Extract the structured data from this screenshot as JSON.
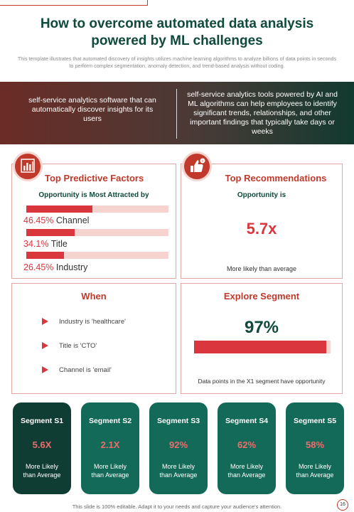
{
  "header": {
    "title_line1": "How to overcome automated data analysis",
    "title_line2": "powered by ML challenges",
    "subtitle": "This template illustrates that automated discovery of insights utilizes machine learning algorithms to analyze billions of data points in seconds to perform complex segmentation, anomaly detection, and trend-based analysis without coding."
  },
  "band": {
    "left": "self-service analytics software that can automatically discover insights for its users",
    "right": "self-service analytics tools powered by AI and ML algorithms can help employees to identify significant trends, relationships, and other important findings that typically take days or weeks"
  },
  "predictive": {
    "title": "Top Predictive Factors",
    "subtitle": "Opportunity is Most Attracted by",
    "icon": "bar-chart-icon",
    "factors": [
      {
        "pct": "46.45%",
        "label": "Channel",
        "value": 0.4645
      },
      {
        "pct": "34.1%",
        "label": "Title",
        "value": 0.341
      },
      {
        "pct": "26.45%",
        "label": "Industry",
        "value": 0.2645
      }
    ]
  },
  "recommendations": {
    "title": "Top Recommendations",
    "icon": "thumbs-up-icon",
    "subtitle": "Opportunity is",
    "value": "5.7x",
    "caption": "More likely than average"
  },
  "when": {
    "title": "When",
    "items": [
      "Industry  is 'healthcare'",
      "Title is 'CTO'",
      "Channel  is 'email'"
    ]
  },
  "explore": {
    "title": "Explore Segment",
    "value": "97%",
    "fraction": 0.97,
    "caption": "Data points in the X1 segment  have opportunity"
  },
  "segments": [
    {
      "name": "Segment S1",
      "value": "5.6X",
      "desc1": "More Likely",
      "desc2": "than Average",
      "color": "#0f3d33"
    },
    {
      "name": "Segment S2",
      "value": "2.1X",
      "desc1": "More Likely",
      "desc2": "than Average",
      "color": "#136a58"
    },
    {
      "name": "Segment S3",
      "value": "92%",
      "desc1": "More Likely",
      "desc2": "than Average",
      "color": "#136a58"
    },
    {
      "name": "Segment S4",
      "value": "62%",
      "desc1": "More Likely",
      "desc2": "than Average",
      "color": "#136a58"
    },
    {
      "name": "Segment S5",
      "value": "58%",
      "desc1": "More Likely",
      "desc2": "than Average",
      "color": "#136a58"
    }
  ],
  "footer": {
    "text": "This slide is 100% editable. Adapt it to your needs and capture your audience's attention.",
    "page": "16"
  },
  "colors": {
    "accent": "#d9363e",
    "brand_green": "#0f4a3c"
  }
}
